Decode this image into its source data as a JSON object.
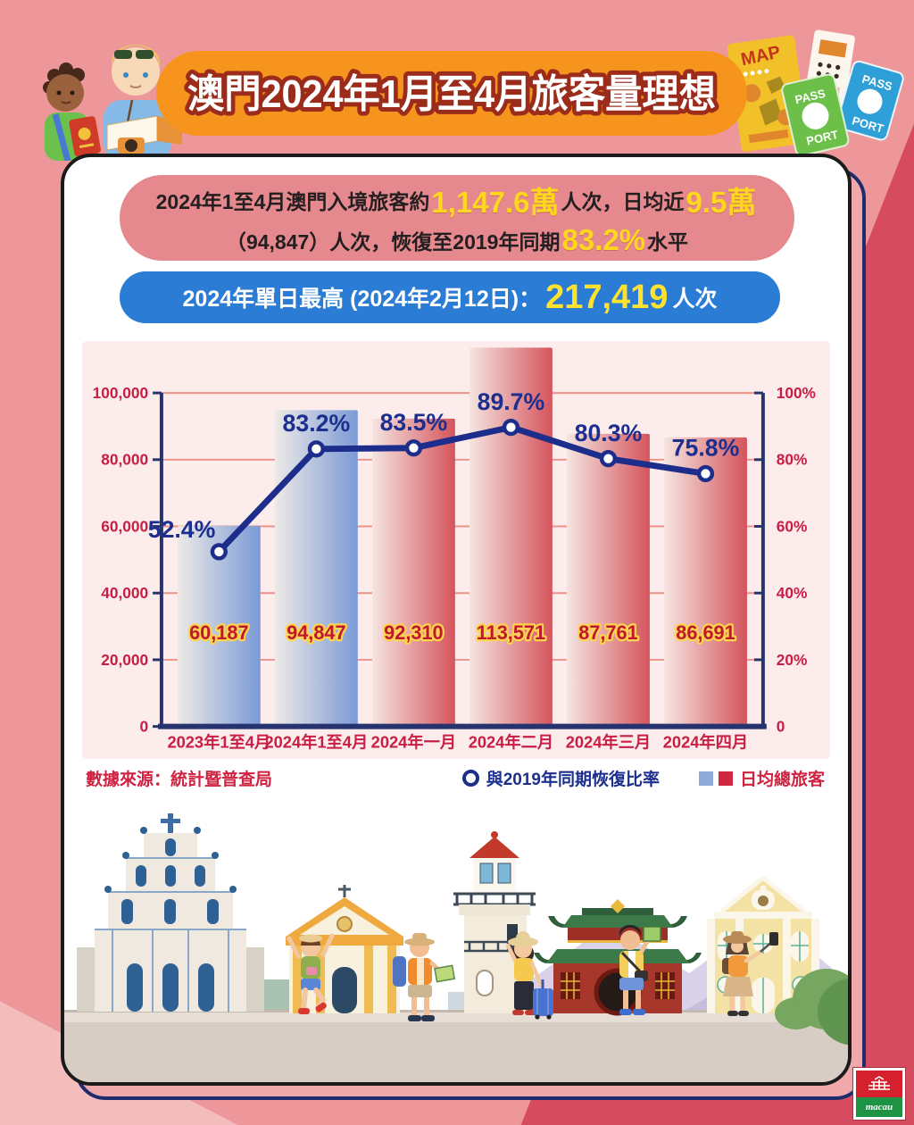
{
  "header": {
    "title": "澳門2024年1月至4月旅客量理想"
  },
  "summary": {
    "line1": [
      {
        "t": "2024年1至4月澳門入境旅客約",
        "c": "dark"
      },
      {
        "t": "1,147.6萬",
        "c": "yellow"
      },
      {
        "t": "人次，日均近",
        "c": "dark"
      },
      {
        "t": "9.5萬",
        "c": "yellow"
      }
    ],
    "line2": [
      {
        "t": "（94,847）人次，恢復至2019年同期",
        "c": "dark"
      },
      {
        "t": "83.2%",
        "c": "yellow"
      },
      {
        "t": "水平",
        "c": "dark"
      }
    ]
  },
  "record": {
    "prefix": "2024年單日最高 (2024年2月12日)：",
    "value": "217,419",
    "suffix": "人次"
  },
  "chart_data": {
    "type": "bar",
    "categories": [
      "2023年1至4月",
      "2024年1至4月",
      "2024年一月",
      "2024年二月",
      "2024年三月",
      "2024年四月"
    ],
    "series": [
      {
        "name": "日均總旅客",
        "type": "bar",
        "values": [
          60187,
          94847,
          92310,
          113571,
          87761,
          86691
        ],
        "value_labels": [
          "60,187",
          "94,847",
          "92,310",
          "113,571",
          "87,761",
          "86,691"
        ],
        "bar_colors": [
          "blue",
          "blue",
          "red",
          "red",
          "red",
          "red"
        ]
      },
      {
        "name": "與2019年同期恢復比率",
        "type": "line",
        "axis": "right",
        "values": [
          52.4,
          83.2,
          83.5,
          89.7,
          80.3,
          75.8
        ],
        "value_labels": [
          "52.4%",
          "83.2%",
          "83.5%",
          "89.7%",
          "80.3%",
          "75.8%"
        ]
      }
    ],
    "axis_left": {
      "max": 100000,
      "ticks": [
        "100,000",
        "80,000",
        "60,000",
        "40,000",
        "20,000",
        "0"
      ]
    },
    "axis_right": {
      "max": 100,
      "ticks": [
        "100%",
        "80%",
        "60%",
        "40%",
        "20%",
        "0"
      ]
    },
    "grid": true,
    "legend_position": "bottom-right",
    "source": "數據來源：統計暨普查局"
  },
  "decor": {
    "map_label": "MAP",
    "pass": "PASS",
    "port": "PORT"
  },
  "footer": {
    "logo_text": "macau"
  },
  "colors": {
    "accent_orange": "#f7941e",
    "pill_red": "#e5898e",
    "pill_blue": "#2a7cd4",
    "bar_blue": "#7b9ad6",
    "bar_red": "#d5545c",
    "line_navy": "#1d2d8c",
    "tick_crimson": "#c81e46",
    "highlight_yellow": "#ffd71e"
  }
}
